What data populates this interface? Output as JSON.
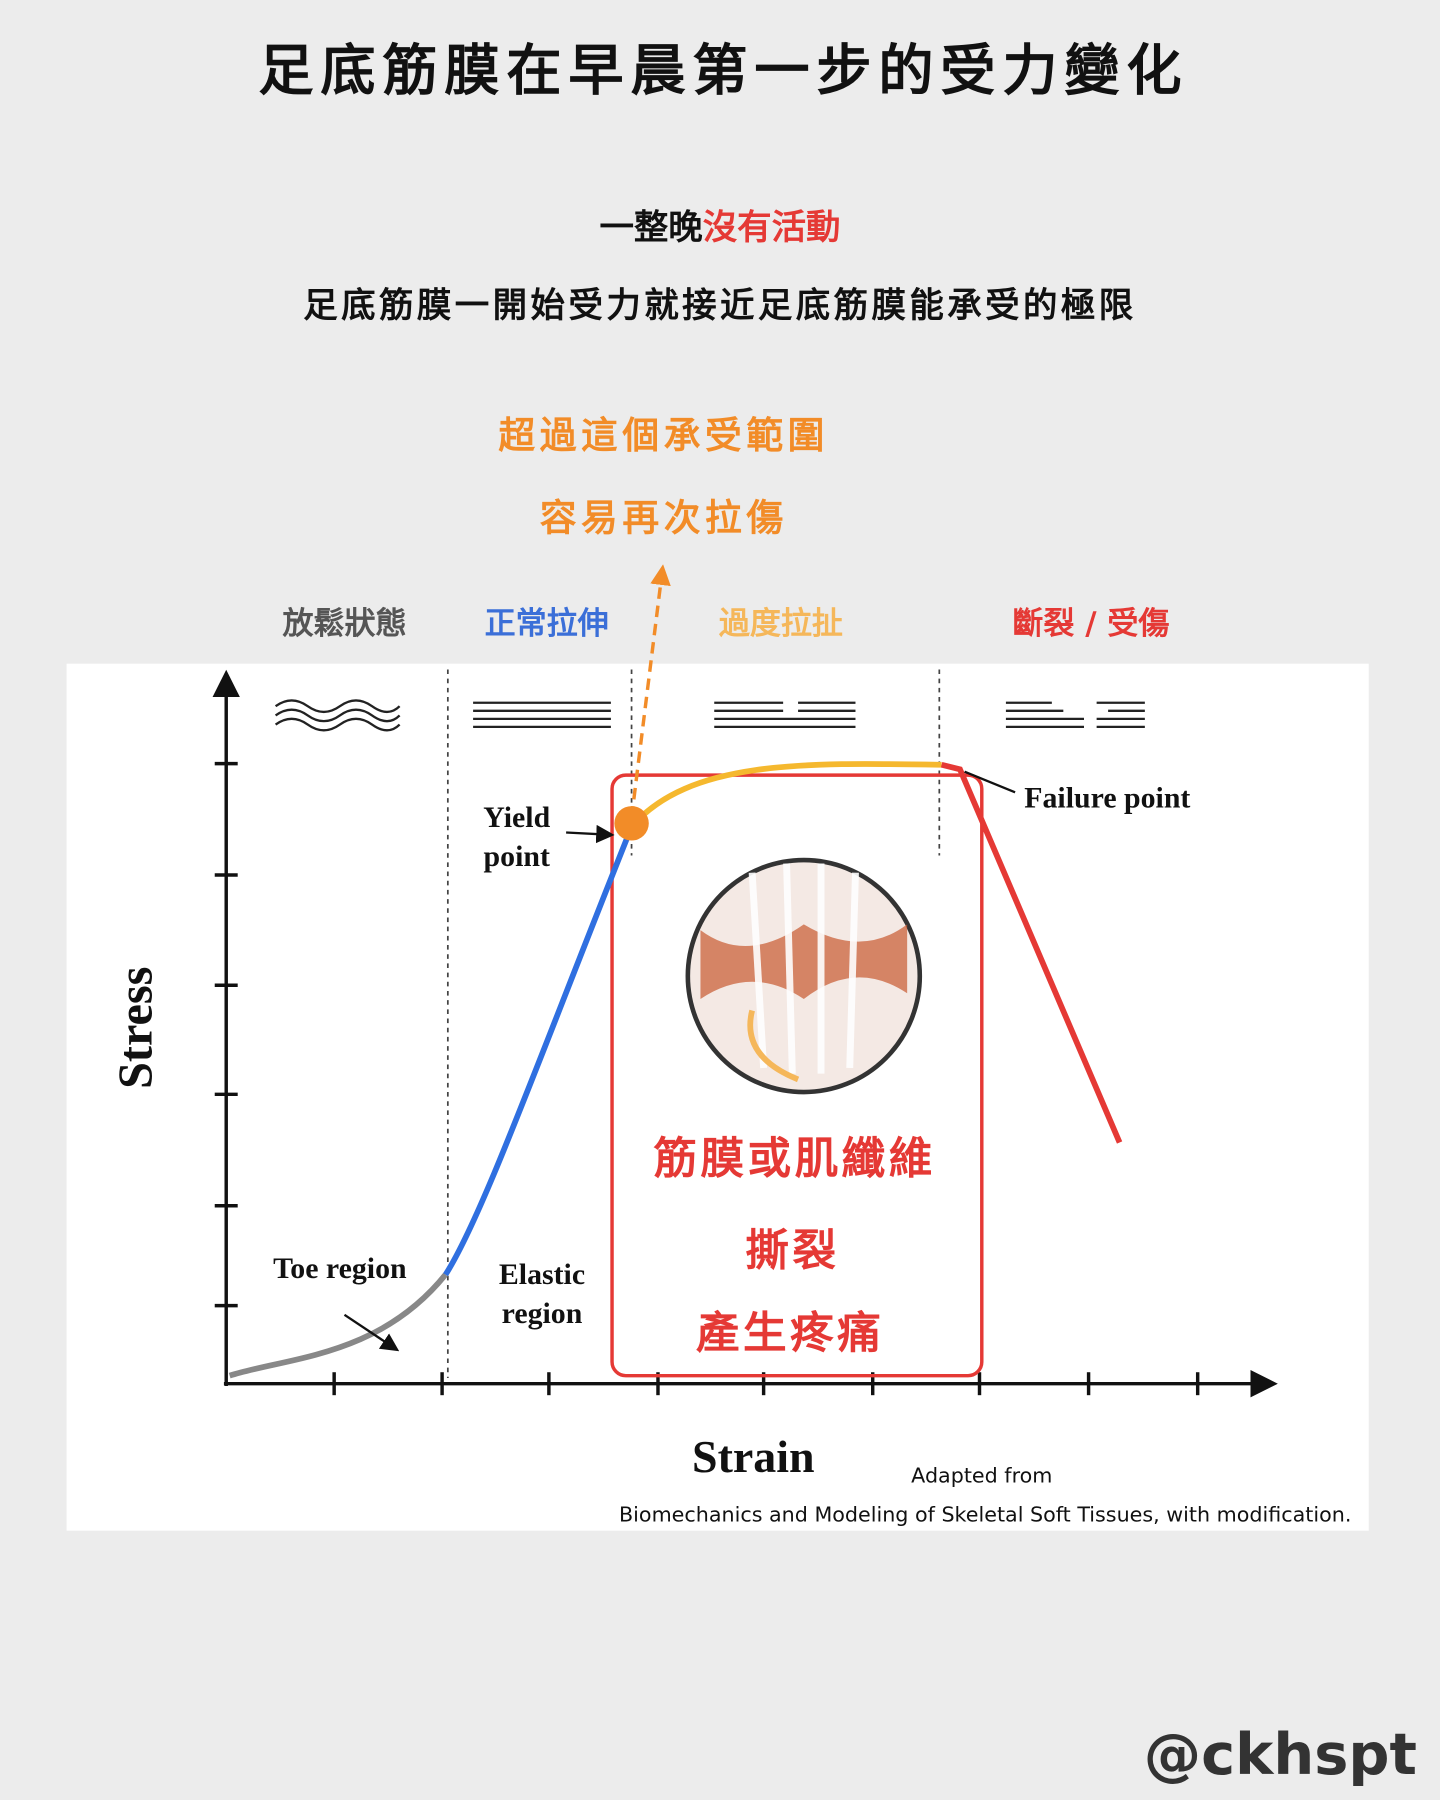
{
  "header": {
    "title": "足底筋膜在早晨第一步的受力變化",
    "line1": {
      "lead": "一整晚",
      "highlight": "沒有活動"
    },
    "line2": "足底筋膜一開始受力就接近足底筋膜能承受的極限"
  },
  "note": [
    "超過這個承受範圍",
    "容易再次拉傷"
  ],
  "zones": [
    "放鬆狀態",
    "正常拉伸",
    "過度拉扯",
    "斷裂 / 受傷"
  ],
  "diagram": {
    "y_axis": "Stress",
    "x_axis": "Strain",
    "yield_label": [
      "Yield",
      "point"
    ],
    "failure_label": "Failure point",
    "toe_label": "Toe region",
    "elastic_label": [
      "Elastic",
      "region"
    ],
    "injury": [
      "筋膜或肌纖維",
      "撕裂",
      "產生疼痛"
    ],
    "credit": [
      "Adapted from",
      "Biomechanics and Modeling of Skeletal Soft Tissues, with modification."
    ]
  },
  "handle": "@ckhspt"
}
